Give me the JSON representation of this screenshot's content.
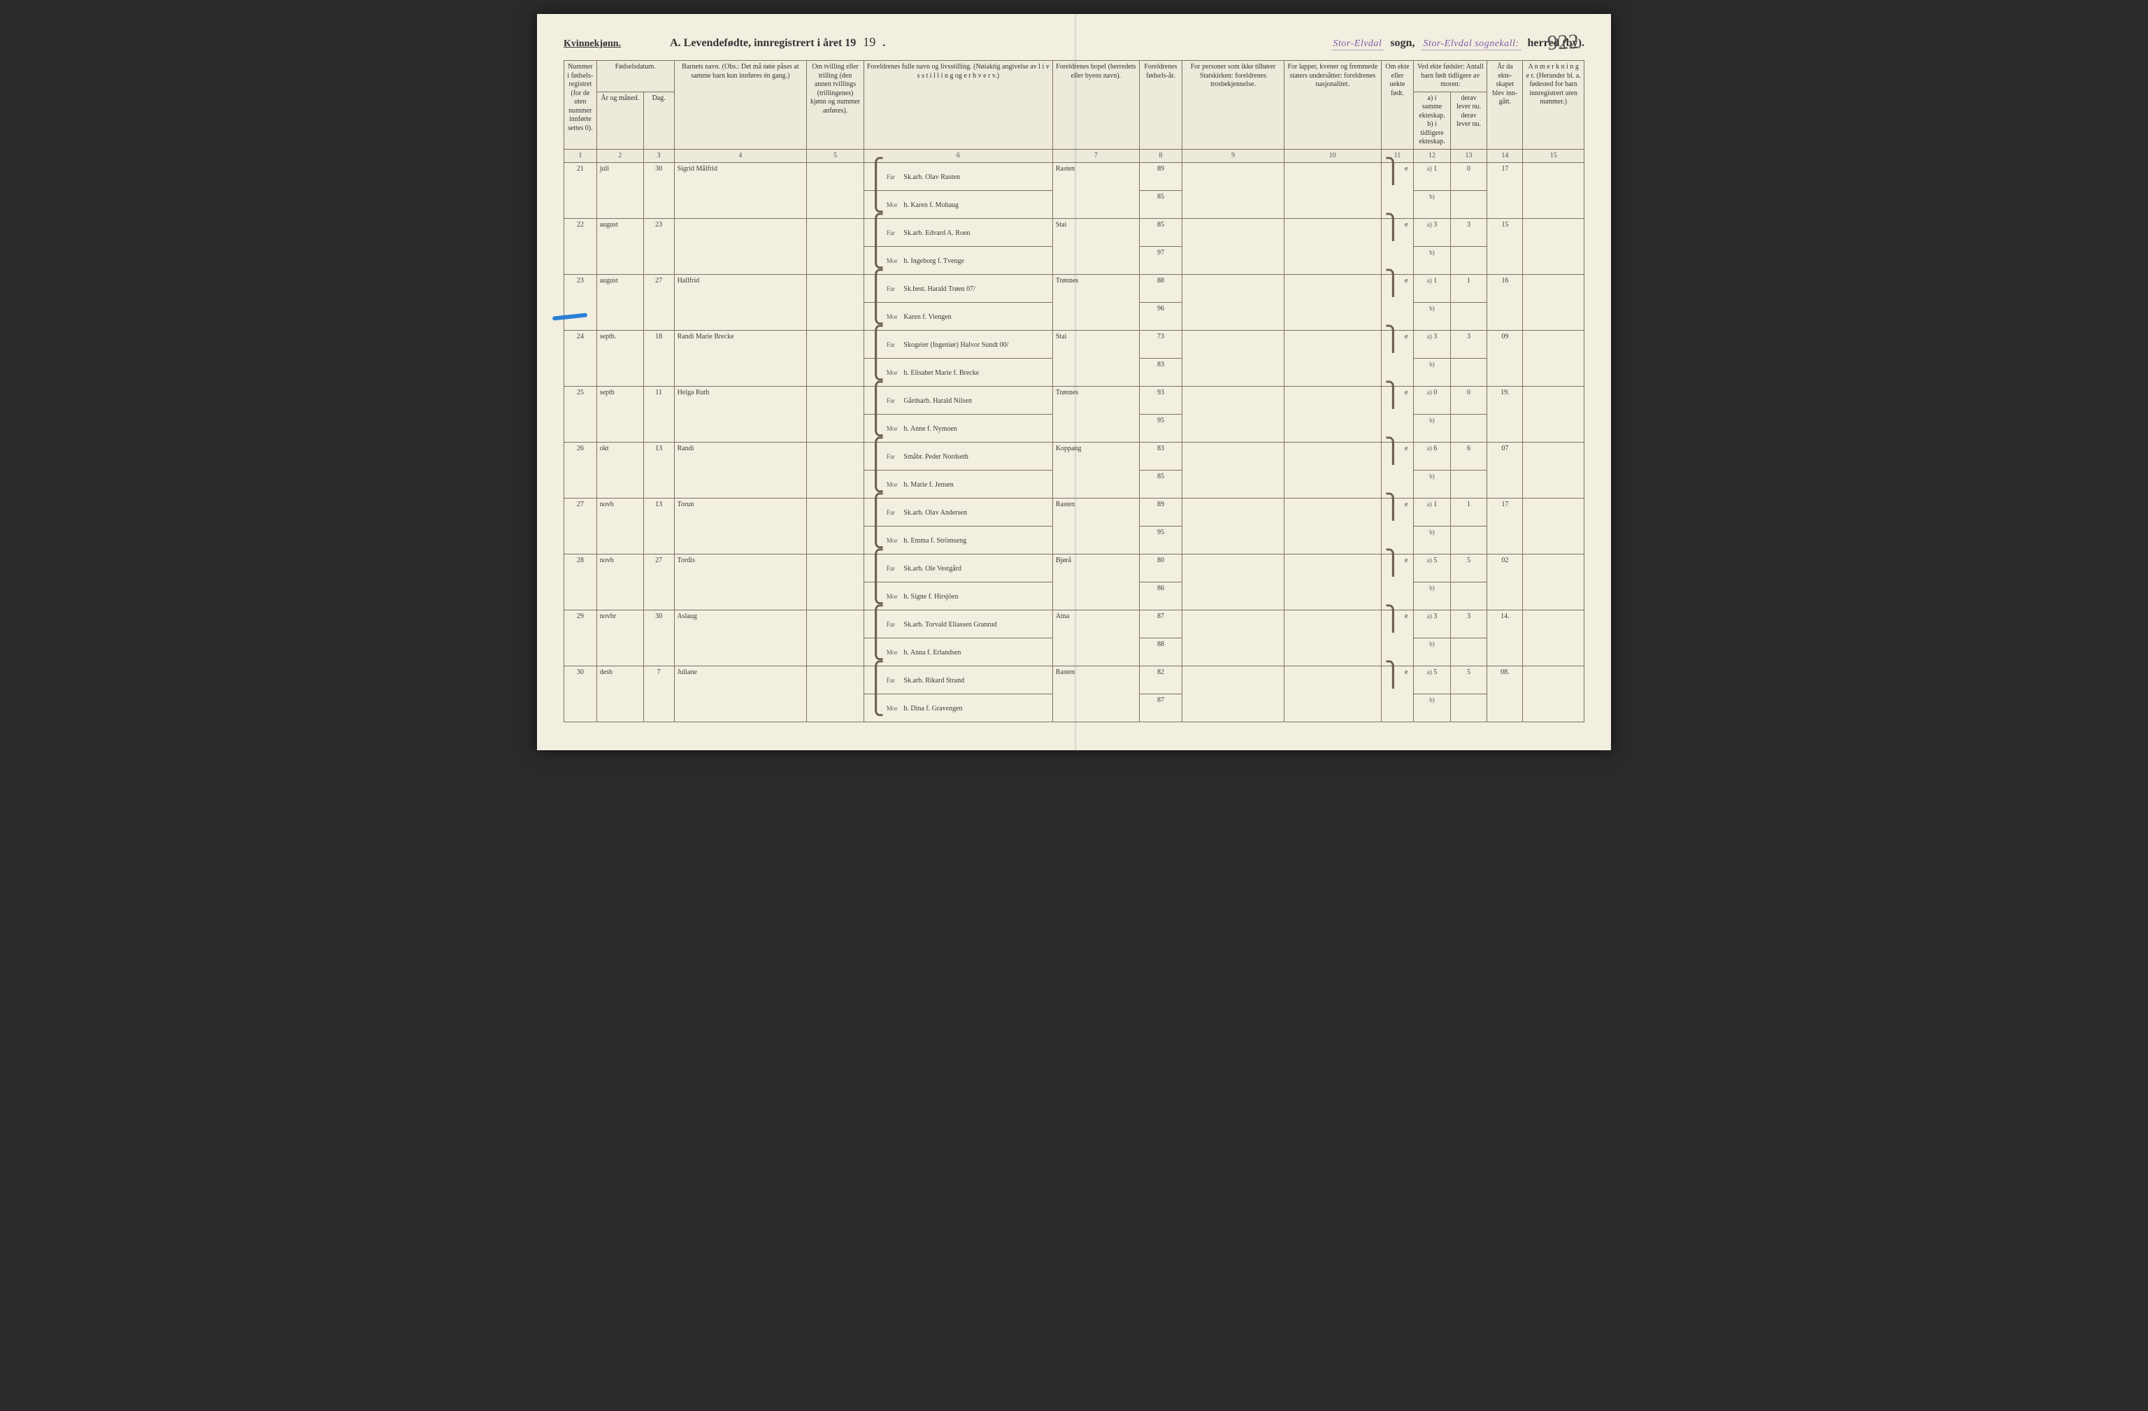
{
  "header": {
    "gender_label": "Kvinnekjønn.",
    "title_prefix": "A.  Levendefødte, innregistrert i året 19",
    "year_suffix_handwritten": "19",
    "title_period": ".",
    "sogn_stamp": "Stor-Elvdal",
    "sogn_label": "sogn,",
    "herred_stamp": "Stor-Elvdal sognekall:",
    "herred_label": "herred (by).",
    "page_number": "922"
  },
  "columns": {
    "c1": "Nummer i fødsels-registret (for de uten nummer innførte settes 0).",
    "c2_3_group": "Fødselsdatum.",
    "c2": "År og måned.",
    "c3": "Dag.",
    "c4": "Barnets navn.\n(Obs.: Det må nøie påses at samme barn kun innføres én gang.)",
    "c5": "Om tvilling eller trilling (den annen tvillings (trillingenes) kjønn og nummer anføres).",
    "c6": "Foreldrenes fulle navn og livsstilling.\n(Nøiaktig angivelse av l i v s s t i l l i n g  og  e r h v e r v.)",
    "c7": "Foreldrenes bopel (herredets eller byens navn).",
    "c8": "Foreldrenes fødsels-år.",
    "c9": "For personer som ikke tilhører Statskirken: foreldrenes trosbekjennelse.",
    "c10": "For lapper, kvener og fremmede staters undersåtter: foreldrenes nasjonalitet.",
    "c11": "Om ekte eller uekte født.",
    "c12_13_group": "Ved ekte fødsler: Antall barn født tidligere av moren:",
    "c12": "a) i samme ekteskap. b) i tidligere ekteskap.",
    "c13": "derav lever nu. derav lever nu.",
    "c14": "År da ekte-skapet blev inn-gått.",
    "c15": "A n m e r k n i n g e r.\n(Herunder bl. a. fødested for barn innregistrert uten nummer.)",
    "nums": [
      "1",
      "2",
      "3",
      "4",
      "5",
      "6",
      "7",
      "8",
      "9",
      "10",
      "11",
      "12",
      "13",
      "14",
      "15"
    ]
  },
  "col_widths_pct": [
    3.2,
    4.6,
    3.0,
    13.0,
    5.6,
    18.5,
    8.5,
    4.2,
    10.0,
    9.5,
    3.2,
    3.6,
    3.6,
    3.5,
    6.0
  ],
  "rows": [
    {
      "num": "21",
      "month": "juli",
      "day": "30",
      "name": "Sigrid Målfrid",
      "twin": "",
      "far": "Sk.arb. Olav Rusten",
      "mor": "h. Karen f. Mohaug",
      "bopel": "Rasten",
      "far_aar": "89",
      "mor_aar": "85",
      "c9": "",
      "c10": "",
      "ekte": "e",
      "a": "1",
      "a_lev": "0",
      "b": "",
      "b_lev": "",
      "aar_ekt": "17",
      "anm": ""
    },
    {
      "num": "22",
      "month": "august",
      "day": "23",
      "name": "",
      "twin": "",
      "far": "Sk.arb. Edvard A. Roen",
      "mor": "h. Ingeborg f. Tvenge",
      "bopel": "Stai",
      "far_aar": "85",
      "mor_aar": "97",
      "c9": "",
      "c10": "",
      "ekte": "e",
      "a": "3",
      "a_lev": "3",
      "b": "",
      "b_lev": "",
      "aar_ekt": "15",
      "anm": ""
    },
    {
      "num": "23",
      "month": "august",
      "day": "27",
      "name": "Hallfrid",
      "twin": "",
      "far": "Sk.best. Harald Trøen  07/",
      "mor": "Karen f. Viengen",
      "bopel": "Trønnes",
      "far_aar": "88",
      "mor_aar": "96",
      "c9": "",
      "c10": "",
      "ekte": "e",
      "a": "1",
      "a_lev": "1",
      "b": "",
      "b_lev": "",
      "aar_ekt": "16",
      "anm": ""
    },
    {
      "num": "24",
      "month": "septb.",
      "day": "18",
      "name": "Randi Marie Brecke",
      "twin": "",
      "far": "Skogeier (Ingeniør) Halvor Sundt  00/",
      "mor": "h. Elisabet Marie f. Brecke",
      "bopel": "Stai",
      "far_aar": "73",
      "mor_aar": "83",
      "c9": "",
      "c10": "",
      "ekte": "e",
      "a": "3",
      "a_lev": "3",
      "b": "",
      "b_lev": "",
      "aar_ekt": "09",
      "anm": ""
    },
    {
      "num": "25",
      "month": "septb",
      "day": "11",
      "name": "Helga Ruth",
      "twin": "",
      "far": "Gårdsarb. Harald Nilsen",
      "mor": "h. Anne f. Nymoen",
      "bopel": "Trønnes",
      "far_aar": "93",
      "mor_aar": "95",
      "c9": "",
      "c10": "",
      "ekte": "e",
      "a": "0",
      "a_lev": "0",
      "b": "",
      "b_lev": "",
      "aar_ekt": "19.",
      "anm": ""
    },
    {
      "num": "26",
      "month": "okt",
      "day": "13",
      "name": "Randi",
      "twin": "",
      "far": "Småbr. Peder Nordseth",
      "mor": "h. Marie f. Jensen",
      "bopel": "Koppang",
      "far_aar": "83",
      "mor_aar": "85",
      "c9": "",
      "c10": "",
      "ekte": "e",
      "a": "6",
      "a_lev": "6",
      "b": "",
      "b_lev": "",
      "aar_ekt": "07",
      "anm": ""
    },
    {
      "num": "27",
      "month": "novb",
      "day": "13",
      "name": "Torun",
      "twin": "",
      "far": "Sk.arb. Olav Andersen",
      "mor": "h. Emma f. Strömseng",
      "bopel": "Rasten",
      "far_aar": "89",
      "mor_aar": "95",
      "c9": "",
      "c10": "",
      "ekte": "e",
      "a": "1",
      "a_lev": "1",
      "b": "",
      "b_lev": "",
      "aar_ekt": "17",
      "anm": ""
    },
    {
      "num": "28",
      "month": "novb",
      "day": "27",
      "name": "Tordis",
      "twin": "",
      "far": "Sk.arb. Ole Vestgård",
      "mor": "h. Signe f. Hirsjöen",
      "bopel": "Bjørå",
      "far_aar": "80",
      "mor_aar": "86",
      "c9": "",
      "c10": "",
      "ekte": "e",
      "a": "5",
      "a_lev": "5",
      "b": "",
      "b_lev": "",
      "aar_ekt": "02",
      "anm": ""
    },
    {
      "num": "29",
      "month": "novbr",
      "day": "30",
      "name": "Aslaug",
      "twin": "",
      "far": "Sk.arb. Torvald Eliassen Granrud",
      "mor": "h. Anna f. Erlandsen",
      "bopel": "Atna",
      "far_aar": "87",
      "mor_aar": "88",
      "c9": "",
      "c10": "",
      "ekte": "e",
      "a": "3",
      "a_lev": "3",
      "b": "",
      "b_lev": "",
      "aar_ekt": "14.",
      "anm": ""
    },
    {
      "num": "30",
      "month": "desb",
      "day": "7",
      "name": "Juliane",
      "twin": "",
      "far": "Sk.arb. Rikard Strand",
      "mor": "h. Dina f. Gravengen",
      "bopel": "Rasten",
      "far_aar": "82",
      "mor_aar": "87",
      "c9": "",
      "c10": "",
      "ekte": "e",
      "a": "5",
      "a_lev": "5",
      "b": "",
      "b_lev": "",
      "aar_ekt": "08.",
      "anm": ""
    }
  ],
  "labels": {
    "far": "Far",
    "mor": "Mor",
    "a": "a)",
    "b": "b)"
  },
  "colors": {
    "paper": "#f2eee0",
    "ink_printed": "#333333",
    "ink_hand": "#3e3a32",
    "rule": "#7a7265",
    "stamp": "#7a5ca8",
    "pencil_mark": "#2a7fd6",
    "background": "#2a2a2a"
  }
}
